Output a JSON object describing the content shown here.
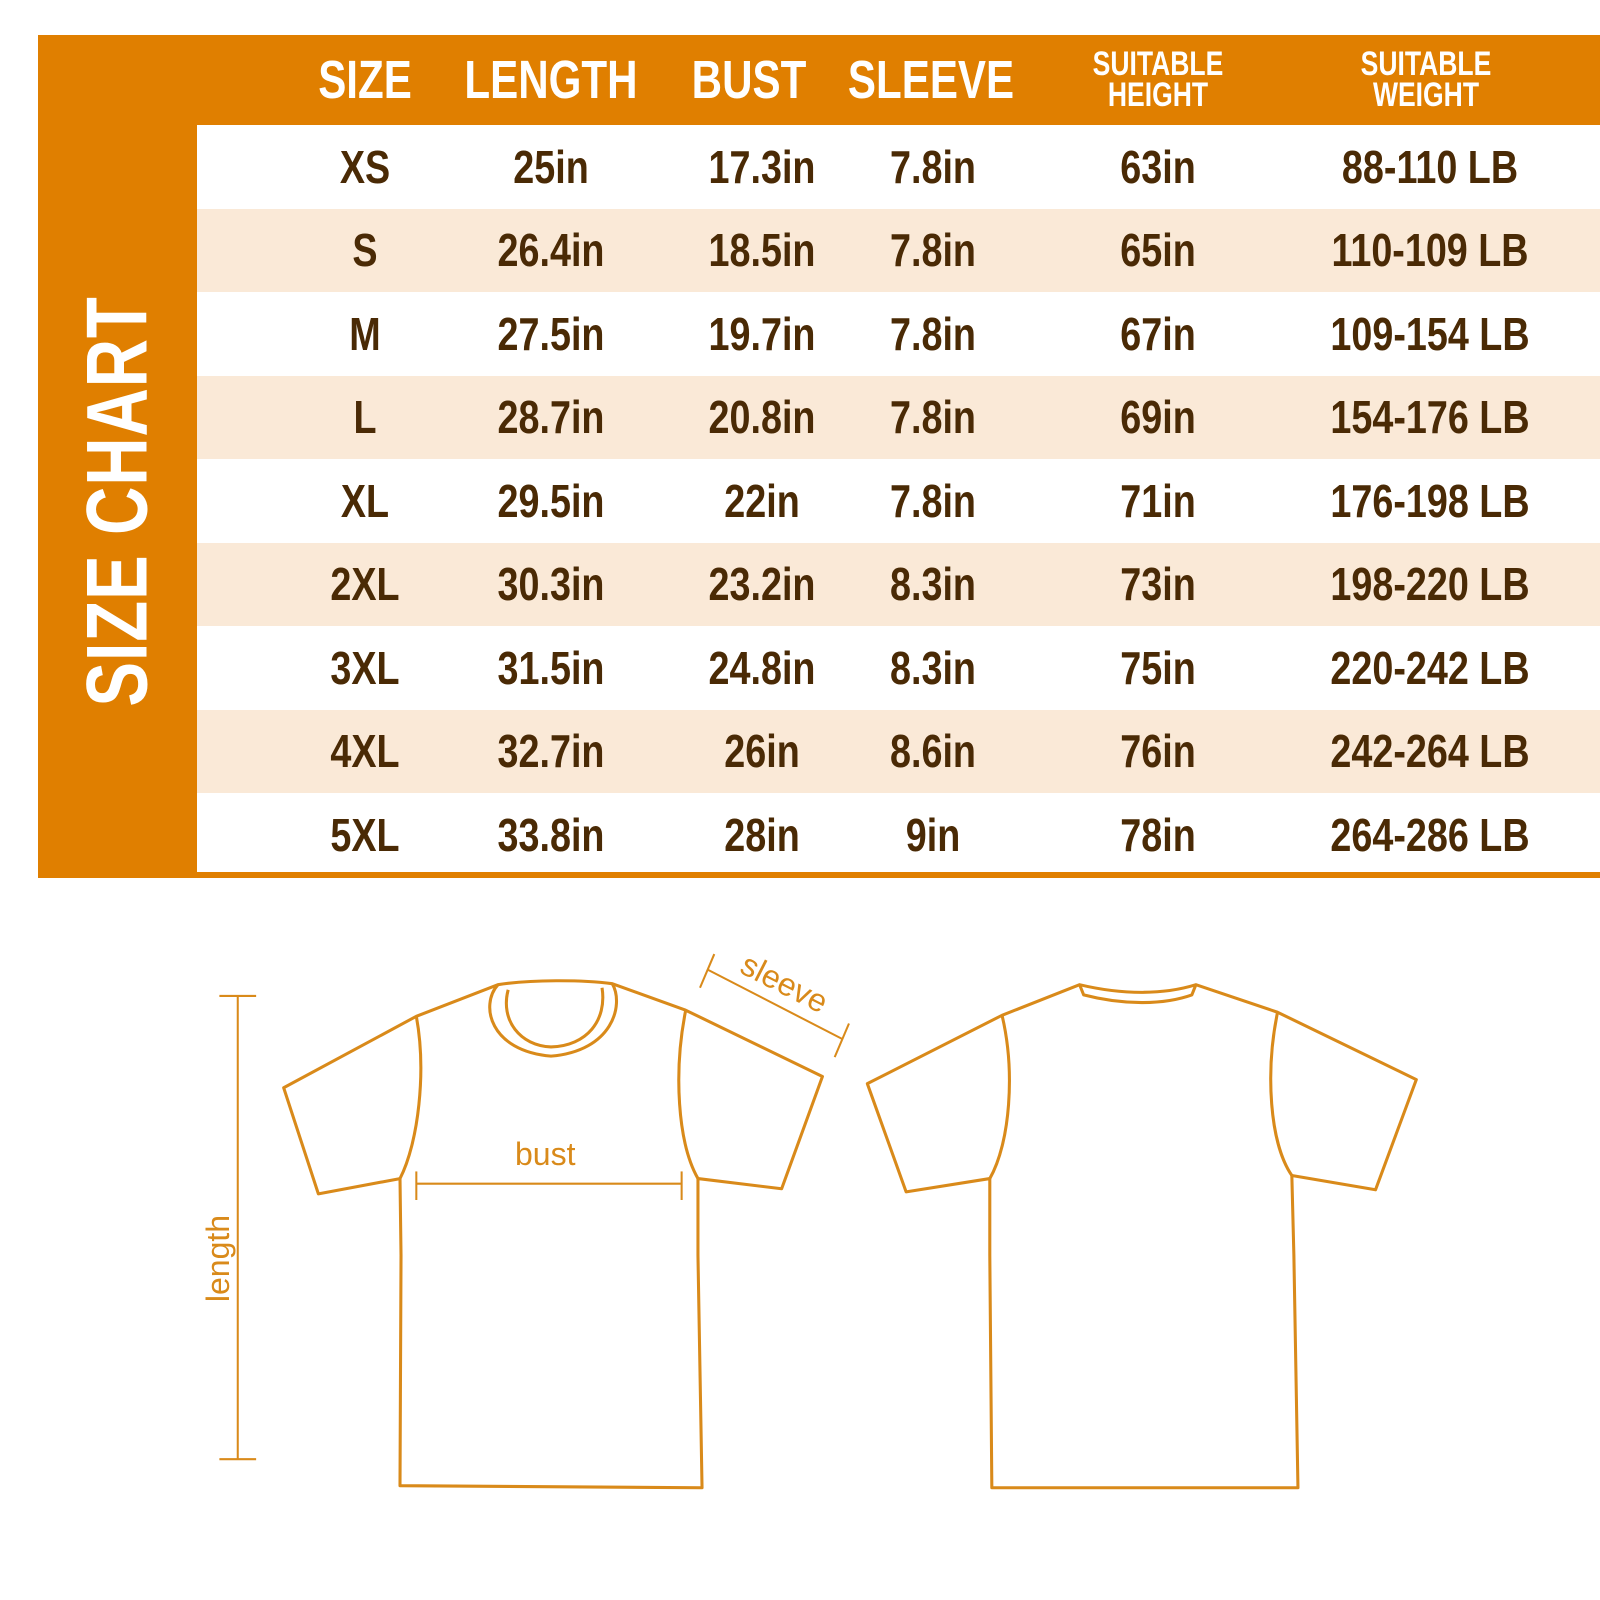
{
  "title": "SIZE CHART",
  "colors": {
    "accent": "#E07F00",
    "text": "#4A2A05",
    "alt_row": "#FAE9D7",
    "diagram": "#D98A1A"
  },
  "columns": [
    "SIZE",
    "LENGTH",
    "BUST",
    "SLEEVE",
    "SUITABLE HEIGHT",
    "SUITABLE WEIGHT"
  ],
  "rows": [
    [
      "XS",
      "25in",
      "17.3in",
      "7.8in",
      "63in",
      "88-110 LB"
    ],
    [
      "S",
      "26.4in",
      "18.5in",
      "7.8in",
      "65in",
      "110-109 LB"
    ],
    [
      "M",
      "27.5in",
      "19.7in",
      "7.8in",
      "67in",
      "109-154 LB"
    ],
    [
      "L",
      "28.7in",
      "20.8in",
      "7.8in",
      "69in",
      "154-176 LB"
    ],
    [
      "XL",
      "29.5in",
      "22in",
      "7.8in",
      "71in",
      "176-198 LB"
    ],
    [
      "2XL",
      "30.3in",
      "23.2in",
      "8.3in",
      "73in",
      "198-220 LB"
    ],
    [
      "3XL",
      "31.5in",
      "24.8in",
      "8.3in",
      "75in",
      "220-242 LB"
    ],
    [
      "4XL",
      "32.7in",
      "26in",
      "8.6in",
      "76in",
      "242-264 LB"
    ],
    [
      "5XL",
      "33.8in",
      "28in",
      "9in",
      "78in",
      "264-286 LB"
    ]
  ],
  "diagram": {
    "sleeve_label": "sleeve",
    "bust_label": "bust",
    "length_label": "length"
  }
}
